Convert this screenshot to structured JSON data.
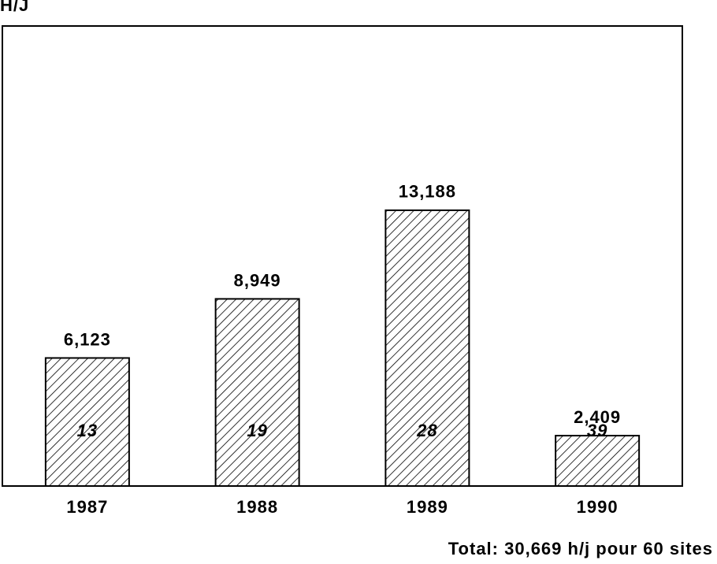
{
  "chart_data": {
    "type": "bar",
    "y_label": "H/J",
    "categories": [
      "1987",
      "1988",
      "1989",
      "1990"
    ],
    "values": [
      6123,
      8949,
      13188,
      2409
    ],
    "value_labels": [
      "6,123",
      "8,949",
      "13,188",
      "2,409"
    ],
    "inner_labels": [
      "13",
      "19",
      "28",
      "39"
    ],
    "color": "#000000",
    "ylim": [
      0,
      22000
    ],
    "note": "Total:  30,669 h/j pour 60 sites"
  }
}
